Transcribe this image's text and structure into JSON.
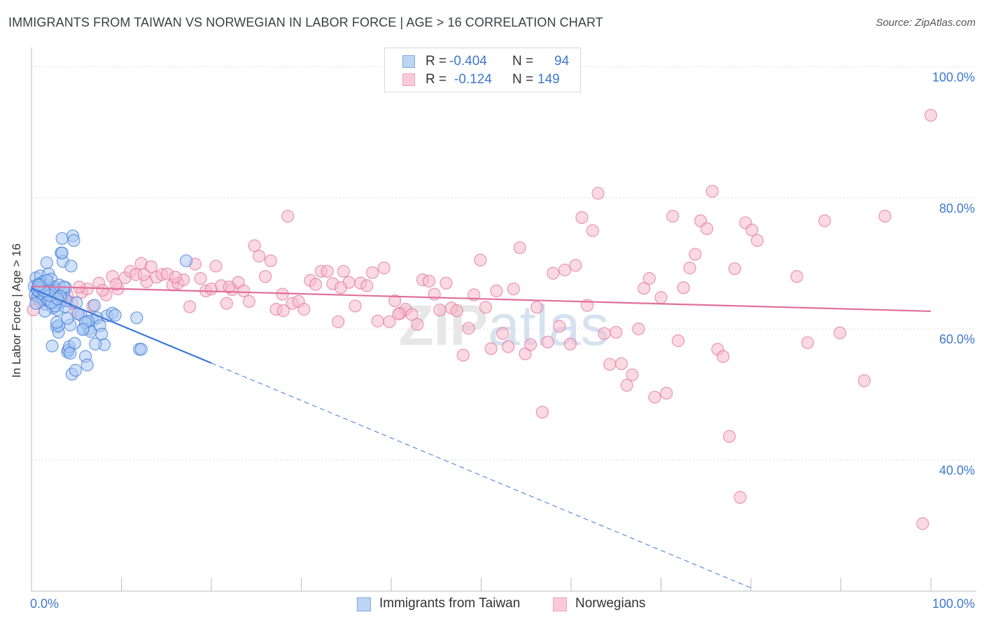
{
  "title": "IMMIGRANTS FROM TAIWAN VS NORWEGIAN IN LABOR FORCE | AGE > 16 CORRELATION CHART",
  "source": "Source: ZipAtlas.com",
  "legend": {
    "rows": [
      {
        "r_label": "R =",
        "r_value": "-0.404",
        "n_label": "N =",
        "n_value": "94",
        "color": "#a9c8f2"
      },
      {
        "r_label": "R =",
        "r_value": "-0.124",
        "n_label": "N =",
        "n_value": "149",
        "color": "#f7b9cc"
      }
    ]
  },
  "bottom_legend": [
    {
      "label": "Immigrants from Taiwan",
      "color": "#a9c8f2"
    },
    {
      "label": "Norwegians",
      "color": "#f7b9cc"
    }
  ],
  "chart_data": {
    "type": "scatter",
    "title": "IMMIGRANTS FROM TAIWAN VS NORWEGIAN IN LABOR FORCE | AGE > 16 CORRELATION CHART",
    "xlabel": "",
    "ylabel": "In Labor Force | Age > 16",
    "xlim": [
      0,
      100
    ],
    "ylim": [
      20,
      104
    ],
    "x_tick_labels": [
      "0.0%",
      "100.0%"
    ],
    "y_tick_labels": [
      "40.0%",
      "60.0%",
      "80.0%",
      "100.0%"
    ],
    "y_ticks": [
      40,
      60,
      80,
      100
    ],
    "grid": true,
    "watermark": "ZIPatlas",
    "series": [
      {
        "name": "Immigrants from Taiwan",
        "color": "#3b78d8",
        "fill": "#a9c8f2",
        "trend": {
          "x0": 0,
          "y0": 66.2,
          "x1": 20,
          "y1": 54.8,
          "dash_to_x": 80,
          "dash_to_y": 20.5
        },
        "points": [
          [
            0.3,
            66.5
          ],
          [
            0.4,
            65.2
          ],
          [
            0.5,
            67.8
          ],
          [
            0.6,
            66.1
          ],
          [
            0.7,
            64.9
          ],
          [
            0.8,
            66.9
          ],
          [
            0.9,
            65.5
          ],
          [
            1.0,
            68.1
          ],
          [
            1.1,
            66.2
          ],
          [
            1.2,
            64.6
          ],
          [
            1.3,
            67.2
          ],
          [
            1.4,
            65.0
          ],
          [
            1.5,
            63.8
          ],
          [
            1.6,
            66.6
          ],
          [
            1.7,
            70.1
          ],
          [
            1.8,
            65.7
          ],
          [
            1.9,
            68.4
          ],
          [
            2.0,
            64.2
          ],
          [
            2.1,
            66.0
          ],
          [
            2.2,
            67.6
          ],
          [
            2.3,
            65.3
          ],
          [
            2.4,
            63.2
          ],
          [
            2.5,
            66.4
          ],
          [
            2.6,
            64.8
          ],
          [
            2.7,
            65.9
          ],
          [
            2.8,
            60.3
          ],
          [
            2.9,
            62.9
          ],
          [
            3.0,
            59.5
          ],
          [
            3.1,
            66.7
          ],
          [
            3.2,
            64.1
          ],
          [
            3.3,
            71.6
          ],
          [
            3.4,
            73.8
          ],
          [
            3.5,
            70.3
          ],
          [
            3.6,
            65.6
          ],
          [
            3.7,
            63.4
          ],
          [
            3.8,
            66.3
          ],
          [
            3.9,
            64.3
          ],
          [
            4.0,
            56.5
          ],
          [
            4.1,
            56.8
          ],
          [
            4.2,
            57.3
          ],
          [
            4.3,
            60.6
          ],
          [
            4.4,
            69.6
          ],
          [
            4.5,
            53.1
          ],
          [
            4.6,
            74.2
          ],
          [
            4.7,
            73.5
          ],
          [
            4.8,
            57.8
          ],
          [
            4.9,
            53.7
          ],
          [
            5.0,
            64.0
          ],
          [
            5.5,
            62.1
          ],
          [
            5.8,
            60.1
          ],
          [
            6.0,
            55.8
          ],
          [
            6.2,
            54.5
          ],
          [
            6.4,
            60.0
          ],
          [
            6.6,
            59.6
          ],
          [
            6.8,
            61.3
          ],
          [
            7.0,
            63.6
          ],
          [
            7.3,
            61.7
          ],
          [
            7.6,
            60.5
          ],
          [
            7.8,
            59.2
          ],
          [
            8.1,
            57.6
          ],
          [
            8.4,
            62.0
          ],
          [
            9.0,
            62.4
          ],
          [
            9.3,
            62.1
          ],
          [
            11.7,
            61.7
          ],
          [
            12.0,
            56.9
          ],
          [
            12.2,
            56.9
          ],
          [
            17.2,
            70.4
          ],
          [
            1.5,
            62.7
          ],
          [
            2.3,
            57.4
          ],
          [
            3.0,
            60.5
          ],
          [
            1.0,
            66.8
          ],
          [
            0.7,
            65.9
          ],
          [
            1.9,
            64.5
          ],
          [
            2.6,
            63.5
          ],
          [
            3.4,
            71.6
          ],
          [
            0.5,
            63.9
          ],
          [
            1.2,
            66.3
          ],
          [
            2.8,
            61.0
          ],
          [
            4.3,
            56.3
          ],
          [
            5.2,
            62.3
          ],
          [
            6.3,
            61.2
          ],
          [
            7.1,
            57.7
          ],
          [
            3.6,
            66.4
          ],
          [
            1.7,
            67.4
          ],
          [
            2.2,
            64.0
          ],
          [
            0.9,
            66.3
          ],
          [
            4.0,
            61.6
          ],
          [
            6.0,
            61.0
          ],
          [
            2.0,
            65.1
          ],
          [
            1.4,
            65.8
          ],
          [
            3.2,
            65.0
          ],
          [
            0.8,
            66.7
          ],
          [
            2.9,
            64.6
          ],
          [
            5.7,
            59.9
          ]
        ]
      },
      {
        "name": "Norwegians",
        "color": "#e0709a",
        "fill": "#f7b9cc",
        "trend": {
          "x0": 0,
          "y0": 66.5,
          "x1": 100,
          "y1": 62.7
        },
        "points": [
          [
            0.2,
            62.9
          ],
          [
            0.5,
            64.6
          ],
          [
            1.0,
            64.1
          ],
          [
            1.5,
            65.5
          ],
          [
            2.0,
            64.0
          ],
          [
            2.5,
            66.3
          ],
          [
            3.0,
            65.2
          ],
          [
            3.5,
            64.4
          ],
          [
            4.0,
            65.2
          ],
          [
            4.5,
            64.0
          ],
          [
            5.0,
            62.4
          ],
          [
            5.6,
            65.6
          ],
          [
            6.2,
            66.1
          ],
          [
            6.8,
            63.5
          ],
          [
            7.5,
            67.0
          ],
          [
            8.3,
            65.2
          ],
          [
            9.0,
            68.0
          ],
          [
            9.6,
            66.1
          ],
          [
            10.4,
            67.8
          ],
          [
            11.0,
            68.8
          ],
          [
            11.6,
            68.3
          ],
          [
            12.2,
            70.0
          ],
          [
            12.8,
            67.2
          ],
          [
            13.3,
            69.5
          ],
          [
            13.9,
            67.9
          ],
          [
            14.5,
            68.3
          ],
          [
            15.1,
            68.4
          ],
          [
            15.7,
            66.7
          ],
          [
            16.3,
            67.0
          ],
          [
            16.9,
            67.5
          ],
          [
            17.6,
            63.4
          ],
          [
            18.2,
            69.9
          ],
          [
            18.8,
            67.7
          ],
          [
            19.4,
            65.8
          ],
          [
            20.0,
            66.1
          ],
          [
            20.5,
            69.6
          ],
          [
            21.1,
            66.6
          ],
          [
            21.7,
            63.9
          ],
          [
            22.3,
            66.0
          ],
          [
            23.0,
            67.1
          ],
          [
            23.6,
            65.8
          ],
          [
            24.2,
            64.2
          ],
          [
            24.8,
            72.7
          ],
          [
            25.3,
            71.1
          ],
          [
            26.0,
            68.0
          ],
          [
            26.6,
            70.4
          ],
          [
            27.2,
            63.0
          ],
          [
            27.9,
            65.3
          ],
          [
            28.5,
            77.2
          ],
          [
            29.0,
            63.9
          ],
          [
            29.7,
            64.2
          ],
          [
            30.3,
            63.0
          ],
          [
            31.0,
            67.4
          ],
          [
            31.6,
            66.8
          ],
          [
            32.2,
            68.8
          ],
          [
            32.9,
            68.8
          ],
          [
            33.5,
            66.9
          ],
          [
            34.1,
            61.1
          ],
          [
            34.7,
            68.8
          ],
          [
            35.3,
            67.1
          ],
          [
            36.0,
            63.5
          ],
          [
            36.6,
            67.0
          ],
          [
            37.3,
            66.6
          ],
          [
            37.9,
            68.6
          ],
          [
            38.5,
            61.2
          ],
          [
            39.2,
            69.3
          ],
          [
            39.8,
            61.1
          ],
          [
            40.4,
            64.3
          ],
          [
            41.0,
            62.4
          ],
          [
            41.6,
            63.0
          ],
          [
            42.3,
            62.2
          ],
          [
            42.9,
            60.7
          ],
          [
            43.5,
            67.5
          ],
          [
            44.2,
            67.3
          ],
          [
            44.8,
            65.3
          ],
          [
            45.4,
            62.9
          ],
          [
            46.1,
            67.0
          ],
          [
            46.7,
            63.2
          ],
          [
            47.3,
            62.8
          ],
          [
            48.0,
            56.0
          ],
          [
            48.6,
            60.1
          ],
          [
            49.2,
            65.2
          ],
          [
            49.9,
            70.5
          ],
          [
            50.5,
            63.3
          ],
          [
            51.1,
            57.0
          ],
          [
            51.7,
            65.8
          ],
          [
            52.4,
            59.3
          ],
          [
            53.0,
            57.3
          ],
          [
            53.6,
            66.1
          ],
          [
            54.3,
            72.4
          ],
          [
            54.9,
            56.2
          ],
          [
            55.5,
            57.6
          ],
          [
            56.2,
            63.3
          ],
          [
            56.8,
            47.3
          ],
          [
            57.4,
            58.0
          ],
          [
            58.0,
            68.5
          ],
          [
            58.7,
            60.4
          ],
          [
            59.3,
            69.0
          ],
          [
            59.9,
            57.7
          ],
          [
            60.5,
            69.7
          ],
          [
            61.2,
            77.0
          ],
          [
            61.8,
            63.6
          ],
          [
            62.4,
            75.0
          ],
          [
            63.0,
            80.7
          ],
          [
            63.7,
            59.3
          ],
          [
            64.3,
            54.6
          ],
          [
            65.0,
            59.5
          ],
          [
            65.6,
            54.7
          ],
          [
            66.2,
            51.4
          ],
          [
            66.8,
            53.0
          ],
          [
            67.5,
            60.0
          ],
          [
            68.1,
            66.2
          ],
          [
            68.7,
            67.7
          ],
          [
            69.3,
            49.6
          ],
          [
            70.0,
            64.8
          ],
          [
            70.6,
            50.2
          ],
          [
            71.3,
            77.2
          ],
          [
            71.9,
            58.2
          ],
          [
            72.5,
            66.3
          ],
          [
            73.2,
            69.3
          ],
          [
            73.8,
            71.4
          ],
          [
            74.4,
            76.5
          ],
          [
            75.1,
            75.3
          ],
          [
            75.7,
            81.0
          ],
          [
            76.3,
            56.9
          ],
          [
            76.9,
            55.8
          ],
          [
            77.6,
            43.6
          ],
          [
            78.2,
            69.2
          ],
          [
            78.8,
            34.3
          ],
          [
            79.4,
            76.2
          ],
          [
            80.1,
            75.1
          ],
          [
            80.7,
            73.5
          ],
          [
            85.1,
            68.0
          ],
          [
            86.3,
            57.9
          ],
          [
            88.2,
            76.5
          ],
          [
            89.9,
            59.4
          ],
          [
            92.6,
            52.1
          ],
          [
            94.9,
            77.2
          ],
          [
            99.1,
            30.3
          ],
          [
            100.0,
            92.6
          ],
          [
            5.3,
            66.4
          ],
          [
            7.9,
            65.9
          ],
          [
            9.4,
            66.8
          ],
          [
            12.5,
            68.3
          ],
          [
            16.0,
            67.9
          ],
          [
            22.0,
            66.4
          ],
          [
            28.0,
            62.8
          ],
          [
            34.4,
            66.3
          ],
          [
            40.8,
            62.3
          ]
        ]
      }
    ]
  }
}
